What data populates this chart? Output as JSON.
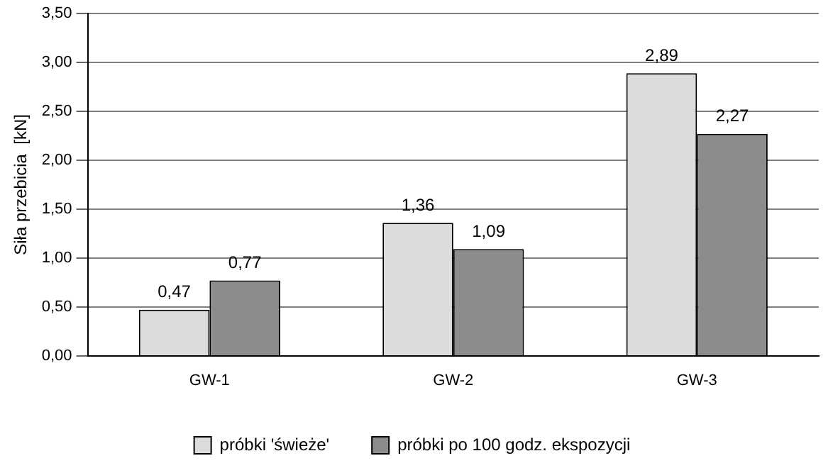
{
  "chart_data": {
    "type": "bar",
    "ylabel": "Siła przebicia  [kN]",
    "categories": [
      "GW-1",
      "GW-2",
      "GW-3"
    ],
    "series": [
      {
        "name": "próbki 'świeże'",
        "color": "#dcdcdc",
        "values": [
          0.47,
          1.36,
          2.89
        ],
        "value_labels": [
          "0,47",
          "1,36",
          "2,89"
        ]
      },
      {
        "name": "próbki po 100 godz. ekspozycji",
        "color": "#8c8c8c",
        "values": [
          0.77,
          1.09,
          2.27
        ],
        "value_labels": [
          "0,77",
          "1,09",
          "2,27"
        ]
      }
    ],
    "ylim": [
      0,
      3.5
    ],
    "yticks": [
      {
        "value": 0,
        "label": "0,00"
      },
      {
        "value": 0.5,
        "label": "0,50"
      },
      {
        "value": 1,
        "label": "1,00"
      },
      {
        "value": 1.5,
        "label": "1,50"
      },
      {
        "value": 2,
        "label": "2,00"
      },
      {
        "value": 2.5,
        "label": "2,50"
      },
      {
        "value": 3,
        "label": "3,00"
      },
      {
        "value": 3.5,
        "label": "3,50"
      }
    ],
    "grid": "y",
    "legend": "bottom"
  }
}
